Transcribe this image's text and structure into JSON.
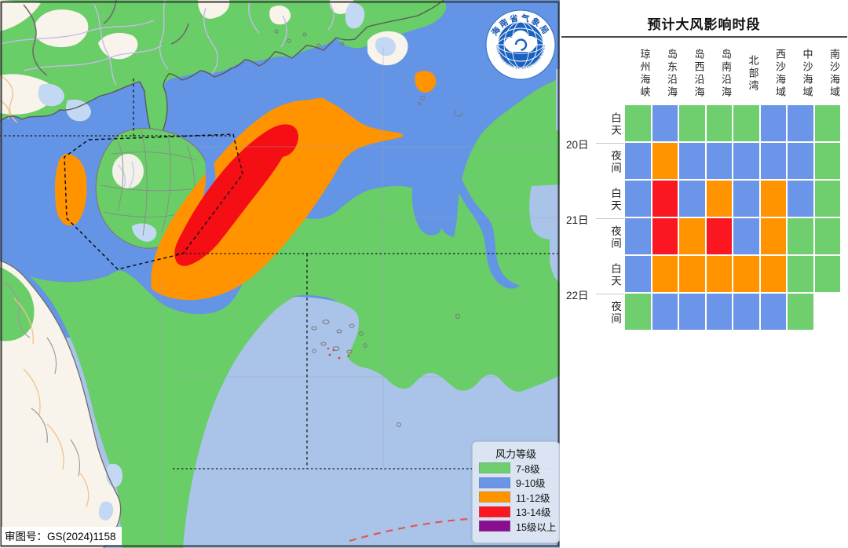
{
  "panel": {
    "title": "预计大风影响时段",
    "columns": [
      "琼州海峡",
      "岛东沿海",
      "岛西沿海",
      "岛南沿海",
      "北部湾",
      "西沙海域",
      "中沙海域",
      "南沙海域"
    ],
    "dates": [
      "20日",
      "21日",
      "22日"
    ],
    "rows": [
      {
        "period": "白天",
        "cells": [
          "g",
          "b",
          "g",
          "g",
          "g",
          "b",
          "b",
          "g"
        ]
      },
      {
        "period": "夜间",
        "cells": [
          "b",
          "o",
          "b",
          "b",
          "b",
          "b",
          "b",
          "g"
        ]
      },
      {
        "period": "白天",
        "cells": [
          "b",
          "r",
          "b",
          "o",
          "b",
          "o",
          "b",
          "g"
        ]
      },
      {
        "period": "夜间",
        "cells": [
          "b",
          "r",
          "o",
          "r",
          "b",
          "o",
          "g",
          "g"
        ]
      },
      {
        "period": "白天",
        "cells": [
          "b",
          "o",
          "o",
          "o",
          "o",
          "o",
          "g",
          "g"
        ]
      },
      {
        "period": "夜间",
        "cells": [
          "g",
          "b",
          "b",
          "b",
          "b",
          "b",
          "g",
          "w"
        ]
      }
    ]
  },
  "palette": {
    "g": "#6fce6e",
    "b": "#6a95e8",
    "o": "#ff9300",
    "r": "#fb1721",
    "w": "#ffffff"
  },
  "map": {
    "approval_label": "审图号：GS(2024)1158",
    "legend": {
      "title": "风力等级",
      "items": [
        {
          "label": "7-8级",
          "color": "#6fce6e"
        },
        {
          "label": "9-10级",
          "color": "#6a95e8"
        },
        {
          "label": "11-12级",
          "color": "#ff9300"
        },
        {
          "label": "13-14级",
          "color": "#fb1721"
        },
        {
          "label": "15级以上",
          "color": "#8a0f8f"
        }
      ]
    },
    "logo": {
      "cn": "海南省气象局",
      "en": "HAINAN PROVINCIAL METEOROLOGICAL BUREAU"
    }
  },
  "chart_data": {
    "type": "heatmap",
    "title": "预计大风影响时段",
    "columns": [
      "琼州海峡",
      "岛东沿海",
      "岛西沿海",
      "岛南沿海",
      "北部湾",
      "西沙海域",
      "中沙海域",
      "南沙海域"
    ],
    "rows": [
      "20日白天",
      "20日夜间",
      "21日白天",
      "21日夜间",
      "22日白天",
      "22日夜间"
    ],
    "values": [
      [
        "7-8级",
        "9-10级",
        "7-8级",
        "7-8级",
        "7-8级",
        "9-10级",
        "9-10级",
        "7-8级"
      ],
      [
        "9-10级",
        "11-12级",
        "9-10级",
        "9-10级",
        "9-10级",
        "9-10级",
        "9-10级",
        "7-8级"
      ],
      [
        "9-10级",
        "13-14级",
        "9-10级",
        "11-12级",
        "9-10级",
        "11-12级",
        "9-10级",
        "7-8级"
      ],
      [
        "9-10级",
        "13-14级",
        "11-12级",
        "13-14级",
        "9-10级",
        "11-12级",
        "7-8级",
        "7-8级"
      ],
      [
        "9-10级",
        "11-12级",
        "11-12级",
        "11-12级",
        "11-12级",
        "11-12级",
        "7-8级",
        "7-8级"
      ],
      [
        "7-8级",
        "9-10级",
        "9-10级",
        "9-10级",
        "9-10级",
        "9-10级",
        "7-8级",
        null
      ]
    ],
    "legend_levels": [
      "7-8级",
      "9-10级",
      "11-12级",
      "13-14级",
      "15级以上"
    ]
  }
}
